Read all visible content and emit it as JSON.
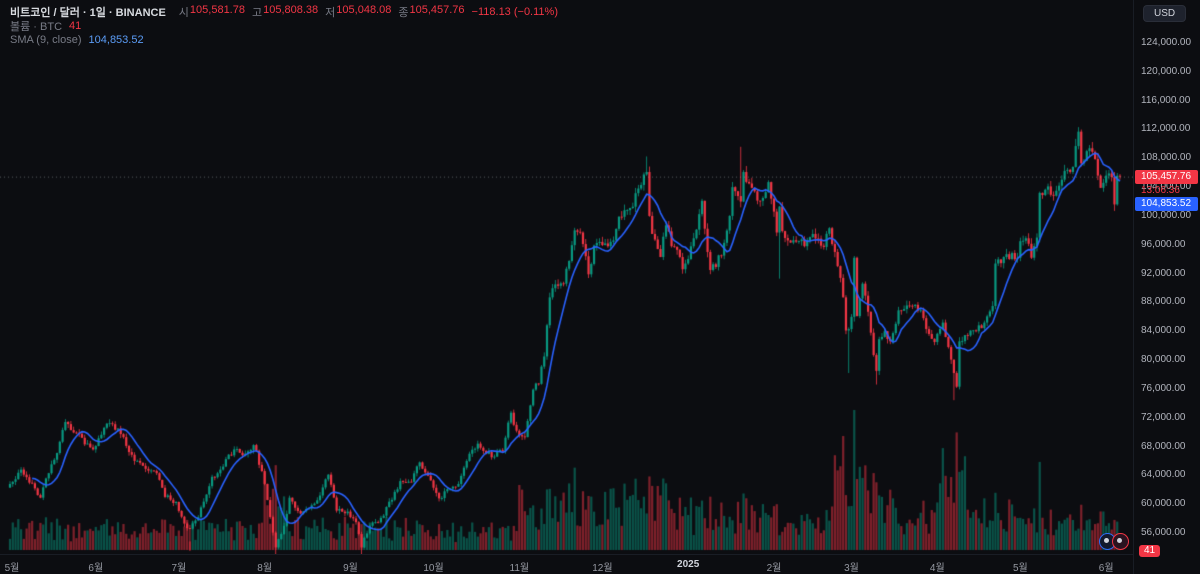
{
  "header": {
    "symbol_title": "비트코인 / 달러 · 1일 · BINANCE",
    "ohlc": {
      "open_label": "시",
      "open": "105,581.78",
      "high_label": "고",
      "high": "105,808.38",
      "low_label": "저",
      "low": "105,048.08",
      "close_label": "종",
      "close": "105,457.76",
      "change": "−118.13 (−0.11%)"
    },
    "volume_row": {
      "label": "볼륨 · BTC",
      "value": "41"
    },
    "sma_row": {
      "label": "SMA (9, close)",
      "value": "104,853.52"
    }
  },
  "toolbar": {
    "currency_button": "USD"
  },
  "badges": {
    "last_price": "105,457.76",
    "countdown": "13:06:36",
    "sma_value": "104,853.52"
  },
  "bottom_right": {
    "count_badge": "41"
  },
  "colors": {
    "background": "#0c0d11",
    "up": "#089981",
    "down": "#f23645",
    "sma_line": "#2962ff",
    "last_badge_bg": "#f23645",
    "sma_badge_bg": "#2962ff",
    "countdown_text": "#f23645",
    "axis_text": "#b2b5be",
    "price_line": "rgba(178,181,190,0.45)"
  },
  "chart_data": {
    "type": "candlestick",
    "symbol": "BTCUSD",
    "exchange": "BINANCE",
    "interval": "1일",
    "title": "비트코인 / 달러 · 1일 · BINANCE",
    "legend_volume": "볼륨 · BTC 41",
    "legend_sma": "SMA (9, close) 104,853.52",
    "total_days": 402,
    "last": {
      "open": 105581.78,
      "high": 105808.38,
      "low": 105048.08,
      "close": 105457.76,
      "change": -118.13,
      "change_pct": -0.11
    },
    "sma": {
      "period": 9,
      "value": 104853.52
    },
    "y_axis": {
      "ylim": [
        53083,
        129970
      ],
      "tick_min": 56000,
      "tick_max": 124000,
      "tick_step": 4000
    },
    "x_axis": {
      "month_labels": [
        {
          "day": 0,
          "label": "5월"
        },
        {
          "day": 31,
          "label": "6월"
        },
        {
          "day": 61,
          "label": "7월"
        },
        {
          "day": 92,
          "label": "8월"
        },
        {
          "day": 123,
          "label": "9월"
        },
        {
          "day": 153,
          "label": "10월"
        },
        {
          "day": 184,
          "label": "11월"
        },
        {
          "day": 214,
          "label": "12월"
        },
        {
          "day": 245,
          "label": "2025",
          "year": true
        },
        {
          "day": 276,
          "label": "2월"
        },
        {
          "day": 304,
          "label": "3월"
        },
        {
          "day": 335,
          "label": "4월"
        },
        {
          "day": 365,
          "label": "5월"
        },
        {
          "day": 396,
          "label": "6월"
        }
      ]
    },
    "price_anchors": [
      [
        0,
        62800
      ],
      [
        4,
        64800
      ],
      [
        8,
        62900
      ],
      [
        11,
        60900
      ],
      [
        14,
        64300
      ],
      [
        17,
        67100
      ],
      [
        20,
        71400
      ],
      [
        24,
        69900
      ],
      [
        27,
        68300
      ],
      [
        30,
        67600
      ],
      [
        34,
        70600
      ],
      [
        37,
        71100
      ],
      [
        41,
        69300
      ],
      [
        45,
        66000
      ],
      [
        49,
        64900
      ],
      [
        53,
        64300
      ],
      [
        56,
        61000
      ],
      [
        60,
        60300
      ],
      [
        63,
        57300
      ],
      [
        65,
        56600
      ],
      [
        68,
        58200
      ],
      [
        73,
        63800
      ],
      [
        76,
        64800
      ],
      [
        81,
        67600
      ],
      [
        84,
        66800
      ],
      [
        88,
        68200
      ],
      [
        91,
        64600
      ],
      [
        94,
        58200
      ],
      [
        96,
        54000
      ],
      [
        99,
        57000
      ],
      [
        101,
        60900
      ],
      [
        105,
        58700
      ],
      [
        108,
        59400
      ],
      [
        112,
        61200
      ],
      [
        115,
        64100
      ],
      [
        118,
        59100
      ],
      [
        122,
        58970
      ],
      [
        125,
        57500
      ],
      [
        127,
        53990
      ],
      [
        130,
        57000
      ],
      [
        134,
        58100
      ],
      [
        138,
        60600
      ],
      [
        141,
        63200
      ],
      [
        145,
        63100
      ],
      [
        148,
        65800
      ],
      [
        152,
        63300
      ],
      [
        155,
        60800
      ],
      [
        158,
        62100
      ],
      [
        162,
        62800
      ],
      [
        166,
        67000
      ],
      [
        169,
        68400
      ],
      [
        172,
        67000
      ],
      [
        175,
        66600
      ],
      [
        178,
        67400
      ],
      [
        181,
        72700
      ],
      [
        183,
        70200
      ],
      [
        185,
        69400
      ],
      [
        186,
        69300
      ],
      [
        189,
        75900
      ],
      [
        191,
        76700
      ],
      [
        193,
        80500
      ],
      [
        195,
        88700
      ],
      [
        197,
        90500
      ],
      [
        200,
        90600
      ],
      [
        204,
        98000
      ],
      [
        206,
        97700
      ],
      [
        209,
        91900
      ],
      [
        211,
        95900
      ],
      [
        213,
        96400
      ],
      [
        216,
        95800
      ],
      [
        218,
        96600
      ],
      [
        220,
        99900
      ],
      [
        224,
        101100
      ],
      [
        228,
        104300
      ],
      [
        230,
        106100
      ],
      [
        231,
        100000
      ],
      [
        232,
        97500
      ],
      [
        235,
        94300
      ],
      [
        237,
        98700
      ],
      [
        239,
        95800
      ],
      [
        241,
        95300
      ],
      [
        243,
        92600
      ],
      [
        244,
        93400
      ],
      [
        247,
        96900
      ],
      [
        248,
        98100
      ],
      [
        250,
        102100
      ],
      [
        252,
        95000
      ],
      [
        253,
        92500
      ],
      [
        257,
        94500
      ],
      [
        260,
        100000
      ],
      [
        261,
        104000
      ],
      [
        264,
        102000
      ],
      [
        265,
        106100
      ],
      [
        268,
        103900
      ],
      [
        271,
        102100
      ],
      [
        274,
        104700
      ],
      [
        275,
        102400
      ],
      [
        276,
        100600
      ],
      [
        277,
        97700
      ],
      [
        278,
        101300
      ],
      [
        279,
        97900
      ],
      [
        281,
        96600
      ],
      [
        285,
        96500
      ],
      [
        287,
        95800
      ],
      [
        290,
        97500
      ],
      [
        294,
        95700
      ],
      [
        296,
        98300
      ],
      [
        297,
        96100
      ],
      [
        300,
        91400
      ],
      [
        301,
        88700
      ],
      [
        302,
        84100
      ],
      [
        303,
        84300
      ],
      [
        304,
        86000
      ],
      [
        305,
        94200
      ],
      [
        306,
        86100
      ],
      [
        308,
        90600
      ],
      [
        310,
        86700
      ],
      [
        312,
        80700
      ],
      [
        313,
        78500
      ],
      [
        314,
        82900
      ],
      [
        316,
        84000
      ],
      [
        318,
        82600
      ],
      [
        321,
        86900
      ],
      [
        326,
        87500
      ],
      [
        329,
        86900
      ],
      [
        331,
        84300
      ],
      [
        334,
        82500
      ],
      [
        337,
        85200
      ],
      [
        338,
        83200
      ],
      [
        341,
        78200
      ],
      [
        342,
        76300
      ],
      [
        343,
        82600
      ],
      [
        346,
        83400
      ],
      [
        349,
        84000
      ],
      [
        352,
        85200
      ],
      [
        355,
        87500
      ],
      [
        356,
        93400
      ],
      [
        360,
        94700
      ],
      [
        364,
        94200
      ],
      [
        365,
        96500
      ],
      [
        367,
        96900
      ],
      [
        369,
        94200
      ],
      [
        371,
        97000
      ],
      [
        372,
        103200
      ],
      [
        373,
        102900
      ],
      [
        375,
        104100
      ],
      [
        377,
        102800
      ],
      [
        379,
        104200
      ],
      [
        382,
        106400
      ],
      [
        384,
        106800
      ],
      [
        385,
        109700
      ],
      [
        386,
        111700
      ],
      [
        387,
        107300
      ],
      [
        389,
        109000
      ],
      [
        391,
        108900
      ],
      [
        393,
        105600
      ],
      [
        394,
        103900
      ],
      [
        395,
        104600
      ],
      [
        396,
        105600
      ],
      [
        397,
        105900
      ],
      [
        398,
        105400
      ],
      [
        399,
        101600
      ],
      [
        400,
        105581.78
      ],
      [
        401,
        105457.76
      ]
    ],
    "wick_highs": [
      [
        230,
        108260
      ],
      [
        264,
        109600
      ],
      [
        385,
        110700
      ],
      [
        386,
        112000
      ]
    ],
    "wick_lows": [
      [
        65,
        53500
      ],
      [
        96,
        52550
      ],
      [
        127,
        52600
      ],
      [
        278,
        91300
      ],
      [
        303,
        78200
      ],
      [
        313,
        76600
      ],
      [
        341,
        74430
      ],
      [
        399,
        100700
      ]
    ],
    "volume_eras": [
      [
        0,
        91,
        0.55
      ],
      [
        92,
        100,
        1.4
      ],
      [
        101,
        152,
        0.6
      ],
      [
        153,
        183,
        0.5
      ],
      [
        184,
        213,
        1.2
      ],
      [
        214,
        244,
        1.25
      ],
      [
        245,
        275,
        0.9
      ],
      [
        276,
        297,
        0.75
      ],
      [
        298,
        303,
        1.7
      ],
      [
        304,
        319,
        1.5
      ],
      [
        320,
        334,
        0.9
      ],
      [
        335,
        345,
        2.0
      ],
      [
        346,
        364,
        1.0
      ],
      [
        365,
        395,
        0.75
      ],
      [
        396,
        401,
        0.5
      ]
    ],
    "volume_spikes": [
      [
        96,
        2.8
      ],
      [
        195,
        2.0
      ],
      [
        204,
        1.7
      ],
      [
        230,
        1.8
      ],
      [
        301,
        2.2
      ],
      [
        305,
        2.0
      ],
      [
        313,
        1.9
      ],
      [
        341,
        2.8
      ],
      [
        343,
        3.0
      ],
      [
        356,
        1.6
      ],
      [
        372,
        1.5
      ]
    ]
  }
}
